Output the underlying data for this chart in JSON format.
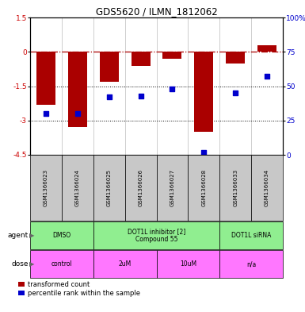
{
  "title": "GDS5620 / ILMN_1812062",
  "samples": [
    "GSM1366023",
    "GSM1366024",
    "GSM1366025",
    "GSM1366026",
    "GSM1366027",
    "GSM1366028",
    "GSM1366033",
    "GSM1366034"
  ],
  "red_values": [
    -2.3,
    -3.3,
    -1.3,
    -0.6,
    -0.3,
    -3.5,
    -0.5,
    0.3
  ],
  "blue_values": [
    30,
    30,
    42,
    43,
    48,
    2,
    45,
    57
  ],
  "ylim_left": [
    -4.5,
    1.5
  ],
  "ylim_right": [
    0,
    100
  ],
  "yticks_left": [
    1.5,
    0,
    -1.5,
    -3.0,
    -4.5
  ],
  "yticks_right": [
    100,
    75,
    50,
    25,
    0
  ],
  "hlines_dotted": [
    -1.5,
    -3.0
  ],
  "hline_dashdot": 0,
  "bar_color": "#AA0000",
  "dot_color": "#0000CC",
  "axis_color_left": "#CC0000",
  "axis_color_right": "#0000CC",
  "agent_groups": [
    {
      "label": "DMSO",
      "start": 0,
      "end": 2,
      "color": "#90EE90"
    },
    {
      "label": "DOT1L inhibitor [2]\nCompound 55",
      "start": 2,
      "end": 6,
      "color": "#90EE90"
    },
    {
      "label": "DOT1L siRNA",
      "start": 6,
      "end": 8,
      "color": "#90EE90"
    }
  ],
  "dose_groups": [
    {
      "label": "control",
      "start": 0,
      "end": 2,
      "color": "#FF77FF"
    },
    {
      "label": "2uM",
      "start": 2,
      "end": 4,
      "color": "#FF77FF"
    },
    {
      "label": "10uM",
      "start": 4,
      "end": 6,
      "color": "#FF77FF"
    },
    {
      "label": "n/a",
      "start": 6,
      "end": 8,
      "color": "#FF77FF"
    }
  ],
  "sample_bg": "#C8C8C8",
  "legend_red": "transformed count",
  "legend_blue": "percentile rank within the sample",
  "background_color": "#ffffff"
}
